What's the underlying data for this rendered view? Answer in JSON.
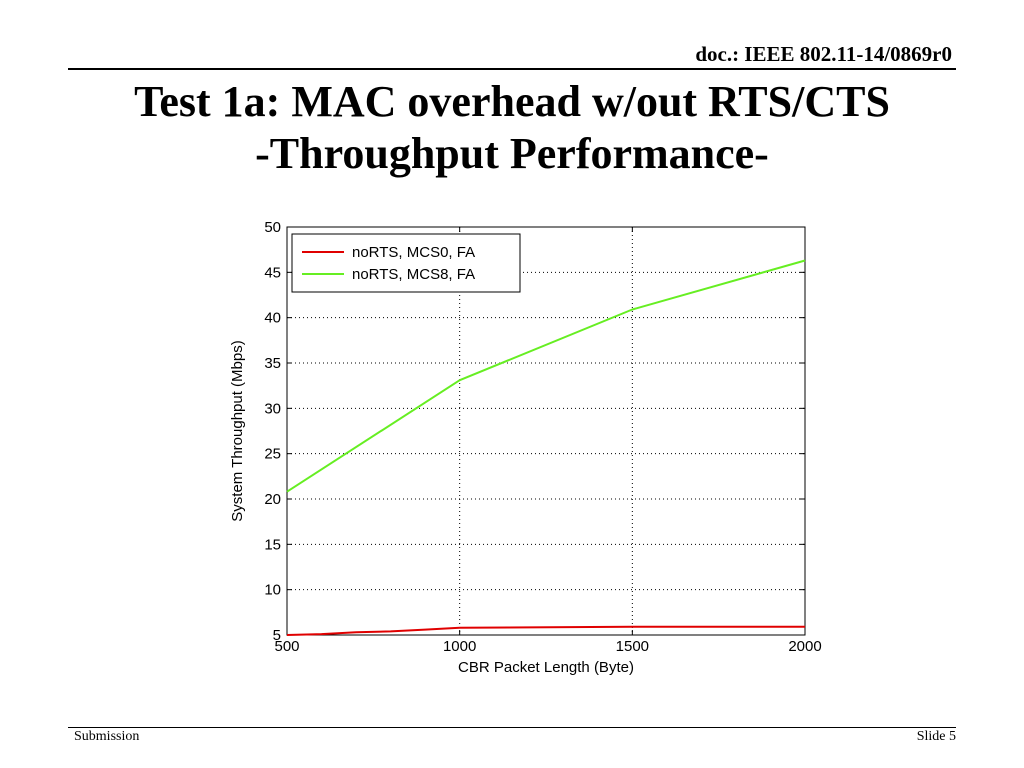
{
  "header": {
    "doc_id": "doc.: IEEE 802.11-14/0869r0"
  },
  "title": {
    "line1": "Test 1a:  MAC overhead w/out RTS/CTS",
    "line2": "-Throughput Performance-"
  },
  "footer": {
    "left": "Submission",
    "right": "Slide 5"
  },
  "chart_data": {
    "type": "line",
    "xlabel": "CBR Packet Length (Byte)",
    "ylabel": "System Throughput (Mbps)",
    "xlim": [
      500,
      2000
    ],
    "ylim": [
      5,
      50
    ],
    "xticks": [
      "500",
      "1000",
      "1500",
      "2000"
    ],
    "yticks": [
      "5",
      "10",
      "15",
      "20",
      "25",
      "30",
      "35",
      "40",
      "45",
      "50"
    ],
    "grid": true,
    "legend_position": "top-left",
    "series": [
      {
        "name": "noRTS, MCS0, FA",
        "color": "#e00000",
        "x": [
          500,
          600,
          700,
          800,
          900,
          1000,
          1500,
          2000
        ],
        "y": [
          5.0,
          5.1,
          5.3,
          5.4,
          5.6,
          5.8,
          5.9,
          5.9
        ]
      },
      {
        "name": "noRTS, MCS8, FA",
        "color": "#66ee22",
        "x": [
          500,
          1000,
          1500,
          2000
        ],
        "y": [
          20.8,
          33.1,
          40.9,
          46.3
        ]
      }
    ]
  }
}
